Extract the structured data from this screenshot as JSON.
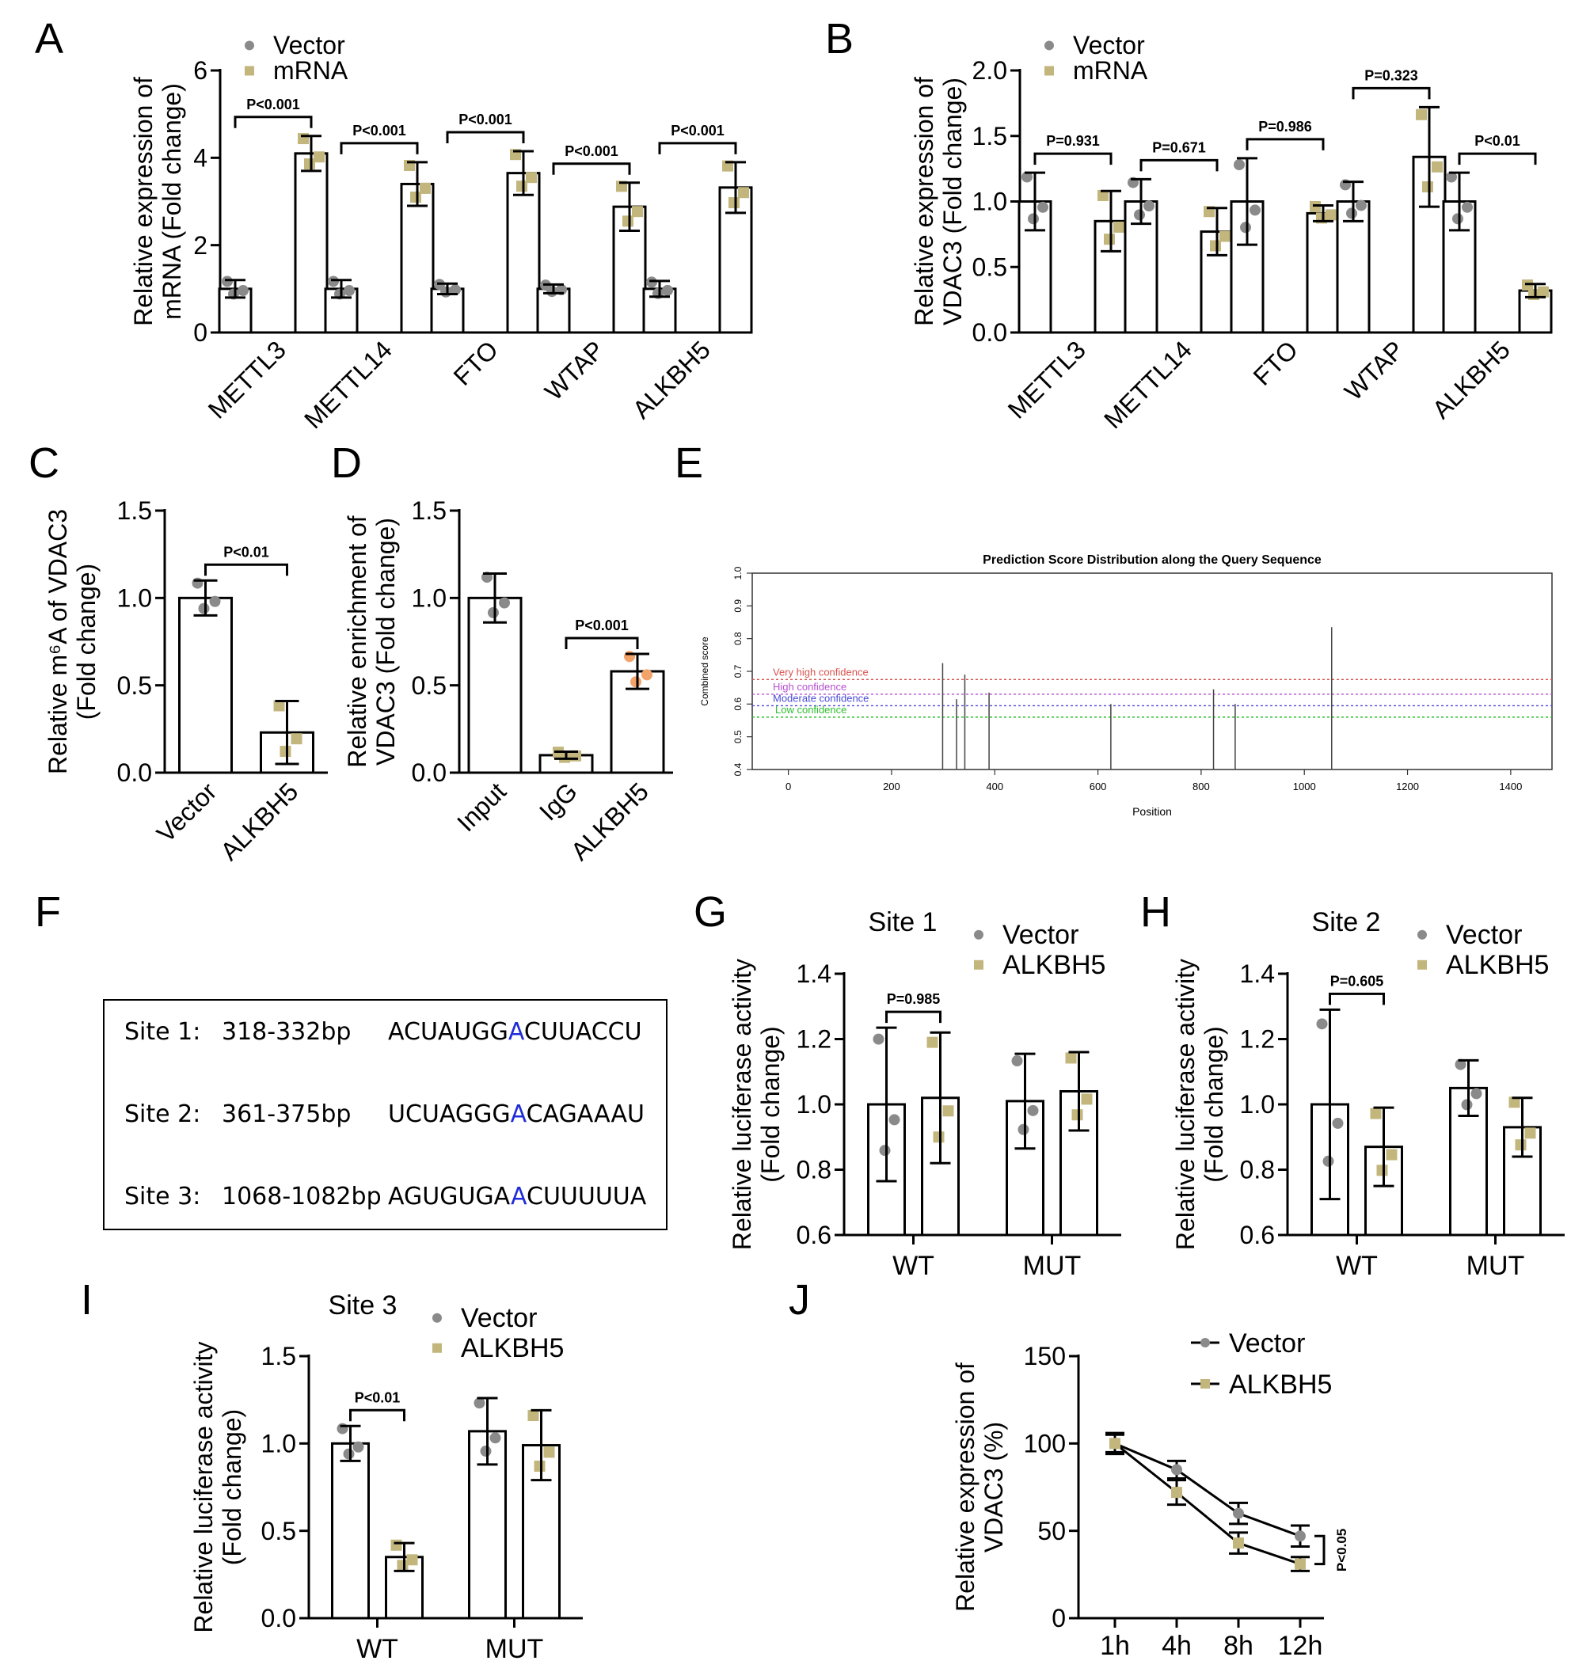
{
  "colors": {
    "vector": "#8a8a8a",
    "treated": "#c2b67d",
    "igg_treated": "#f2a36a",
    "e_very_high": "#d9534f",
    "e_high": "#b64fd1",
    "e_moderate": "#4a4ad6",
    "e_low": "#2dbf2d"
  },
  "panels": {
    "A": "A",
    "B": "B",
    "C": "C",
    "D": "D",
    "E": "E",
    "F": "F",
    "G": "G",
    "H": "H",
    "I": "I",
    "J": "J"
  },
  "chart_data": [
    {
      "id": "A",
      "type": "bar",
      "ylabel": [
        "Relative expression of",
        "mRNA (Fold change)"
      ],
      "ylim": [
        0,
        6
      ],
      "yticks": [
        "0",
        "2",
        "4",
        "6"
      ],
      "categories": [
        "METTL3",
        "METTL14",
        "FTO",
        "WTAP",
        "ALKBH5"
      ],
      "series": [
        {
          "name": "Vector",
          "values": [
            1.0,
            1.0,
            1.0,
            1.0,
            1.0
          ],
          "err": [
            0.2,
            0.2,
            0.12,
            0.1,
            0.18
          ]
        },
        {
          "name": "mRNA",
          "values": [
            4.1,
            3.4,
            3.65,
            2.88,
            3.32
          ],
          "err": [
            0.4,
            0.5,
            0.5,
            0.55,
            0.58
          ]
        }
      ],
      "pvalues": [
        "P<0.001",
        "P<0.001",
        "P<0.001",
        "P<0.001",
        "P<0.001"
      ],
      "legend": [
        "Vector",
        "mRNA"
      ]
    },
    {
      "id": "B",
      "type": "bar",
      "ylabel": [
        "Relative expression of",
        "VDAC3 (Fold change)"
      ],
      "ylim": [
        0,
        2.0
      ],
      "yticks": [
        "0.0",
        "0.5",
        "1.0",
        "1.5",
        "2.0"
      ],
      "categories": [
        "METTL3",
        "METTL14",
        "FTO",
        "WTAP",
        "ALKBH5"
      ],
      "series": [
        {
          "name": "Vector",
          "values": [
            1.0,
            1.0,
            1.0,
            1.0,
            1.0
          ],
          "err": [
            0.22,
            0.17,
            0.33,
            0.15,
            0.22
          ]
        },
        {
          "name": "mRNA",
          "values": [
            0.85,
            0.77,
            0.91,
            1.34,
            0.32
          ],
          "err": [
            0.23,
            0.18,
            0.06,
            0.38,
            0.05
          ]
        }
      ],
      "pvalues": [
        "P=0.931",
        "P=0.671",
        "P=0.986",
        "P=0.323",
        "P<0.01"
      ],
      "legend": [
        "Vector",
        "mRNA"
      ]
    },
    {
      "id": "C",
      "type": "bar",
      "ylabel": [
        "Relative m⁶A of VDAC3",
        "(Fold change)"
      ],
      "ylim": [
        0,
        1.5
      ],
      "yticks": [
        "0.0",
        "0.5",
        "1.0",
        "1.5"
      ],
      "categories": [
        "Vector",
        "ALKBH5"
      ],
      "values": [
        1.0,
        0.23
      ],
      "err": [
        0.1,
        0.18
      ],
      "pvalues": [
        "P<0.01"
      ]
    },
    {
      "id": "D",
      "type": "bar",
      "ylabel": [
        "Relative enrichment of",
        "VDAC3 (Fold change)"
      ],
      "ylim": [
        0,
        1.5
      ],
      "yticks": [
        "0.0",
        "0.5",
        "1.0",
        "1.5"
      ],
      "categories": [
        "Input",
        "IgG",
        "ALKBH5"
      ],
      "values": [
        1.0,
        0.1,
        0.58
      ],
      "err": [
        0.14,
        0.02,
        0.1
      ],
      "pvalues": [
        "P<0.001"
      ]
    },
    {
      "id": "E",
      "type": "bar",
      "title": "Prediction Score Distribution along the Query Sequence",
      "xlabel": "Position",
      "ylabel": "Combined score",
      "xlim": [
        -70,
        1480
      ],
      "ylim": [
        0.4,
        1.0
      ],
      "xticks": [
        "0",
        "200",
        "400",
        "600",
        "800",
        "1000",
        "1200",
        "1400"
      ],
      "yticks": [
        "0.4",
        "0.5",
        "0.6",
        "0.7",
        "0.8",
        "0.9",
        "1.0"
      ],
      "thresholds": [
        {
          "label": "Very high confidence",
          "value": 0.675
        },
        {
          "label": "High confidence",
          "value": 0.63
        },
        {
          "label": "Moderate confidence",
          "value": 0.595
        },
        {
          "label": "Low confidence",
          "value": 0.56
        }
      ],
      "x": [
        299,
        326,
        342,
        389,
        625,
        824,
        866,
        1053
      ],
      "values": [
        0.725,
        0.615,
        0.69,
        0.635,
        0.6,
        0.645,
        0.6,
        0.835
      ]
    },
    {
      "id": "G",
      "type": "bar",
      "title": "Site 1",
      "ylabel": [
        "Relative luciferase activity",
        "(Fold change)"
      ],
      "ylim": [
        0.6,
        1.4
      ],
      "yticks": [
        "0.6",
        "0.8",
        "1.0",
        "1.2",
        "1.4"
      ],
      "categories": [
        "WT",
        "MUT"
      ],
      "series": [
        {
          "name": "Vector",
          "values": [
            1.0,
            1.01
          ],
          "err": [
            0.235,
            0.145
          ]
        },
        {
          "name": "ALKBH5",
          "values": [
            1.02,
            1.04
          ],
          "err": [
            0.2,
            0.12
          ]
        }
      ],
      "pvalues": [
        "P=0.985"
      ],
      "legend": [
        "Vector",
        "ALKBH5"
      ]
    },
    {
      "id": "H",
      "type": "bar",
      "title": "Site 2",
      "ylabel": [
        "Relative luciferase activity",
        "(Fold change)"
      ],
      "ylim": [
        0.6,
        1.4
      ],
      "yticks": [
        "0.6",
        "0.8",
        "1.0",
        "1.2",
        "1.4"
      ],
      "categories": [
        "WT",
        "MUT"
      ],
      "series": [
        {
          "name": "Vector",
          "values": [
            1.0,
            1.05
          ],
          "err": [
            0.29,
            0.085
          ]
        },
        {
          "name": "ALKBH5",
          "values": [
            0.87,
            0.93
          ],
          "err": [
            0.12,
            0.09
          ]
        }
      ],
      "pvalues": [
        "P=0.605"
      ],
      "legend": [
        "Vector",
        "ALKBH5"
      ]
    },
    {
      "id": "I",
      "type": "bar",
      "title": "Site 3",
      "ylabel": [
        "Relative luciferase activity",
        "(Fold change)"
      ],
      "ylim": [
        0,
        1.5
      ],
      "yticks": [
        "0.0",
        "0.5",
        "1.0",
        "1.5"
      ],
      "categories": [
        "WT",
        "MUT"
      ],
      "series": [
        {
          "name": "Vector",
          "values": [
            1.0,
            1.07
          ],
          "err": [
            0.1,
            0.19
          ]
        },
        {
          "name": "ALKBH5",
          "values": [
            0.35,
            0.99
          ],
          "err": [
            0.08,
            0.2
          ]
        }
      ],
      "pvalues": [
        "P<0.01"
      ],
      "legend": [
        "Vector",
        "ALKBH5"
      ]
    },
    {
      "id": "J",
      "type": "line",
      "ylabel": [
        "Relative expression of",
        "VDAC3 (%)"
      ],
      "ylim": [
        0,
        150
      ],
      "yticks": [
        "0",
        "50",
        "100",
        "150"
      ],
      "categories": [
        "1h",
        "4h",
        "8h",
        "12h"
      ],
      "series": [
        {
          "name": "Vector",
          "values": [
            100,
            85,
            60,
            47
          ],
          "err": [
            5,
            5,
            6,
            6
          ]
        },
        {
          "name": "ALKBH5",
          "values": [
            100,
            72,
            43,
            31
          ],
          "err": [
            6,
            7,
            6,
            4
          ]
        }
      ],
      "pvalues": [
        "P<0.05"
      ],
      "legend": [
        "Vector",
        "ALKBH5"
      ]
    }
  ],
  "sites_box": [
    {
      "label": "Site 1:",
      "range": "318-332bp",
      "seq_pre": "ACUAUGG",
      "seq_mid": "A",
      "seq_post": "CUUACCU"
    },
    {
      "label": "Site 2:",
      "range": "361-375bp",
      "seq_pre": "UCUAGGG",
      "seq_mid": "A",
      "seq_post": "CAGAAAU"
    },
    {
      "label": "Site 3:",
      "range": "1068-1082bp",
      "seq_pre": "AGUGUGA",
      "seq_mid": "A",
      "seq_post": "CUUUUUA"
    }
  ]
}
